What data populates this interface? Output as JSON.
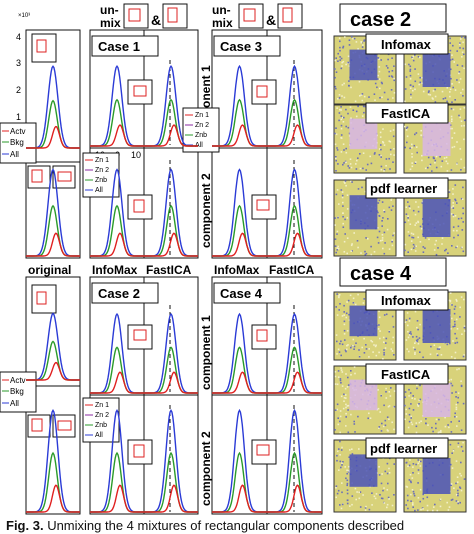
{
  "scale_note": "×10³",
  "tick_4": "4",
  "tick_3": "3",
  "tick_2": "2",
  "tick_1": "1",
  "xticks": [
    "-10",
    "0",
    "10"
  ],
  "unmix_left": "un-\nmix",
  "unmix_right": "un-\nmix",
  "amp": "&",
  "case1": "Case 1",
  "case2": "Case 2",
  "case3": "Case 3",
  "case4": "Case 4",
  "col_original": "original",
  "col_infomax": "InfoMax",
  "col_fastica": "FastICA",
  "component1": "component 1",
  "component2": "component 2",
  "legend_left": [
    "Actv",
    "Bkg",
    "All"
  ],
  "legend_zn": [
    "Zn 1",
    "Zn 2",
    "Znb",
    "All"
  ],
  "case2_title": "case 2",
  "case4_title": "case 4",
  "method_labels": [
    "Infomax",
    "FastICA",
    "pdf learner"
  ],
  "colors": {
    "actv": "#e02020",
    "bkg": "#2a9a2a",
    "all": "#2b3bd6",
    "zn2": "#8a2aa0",
    "noise_yellow": "#d8d27a",
    "blue_patch": "#4a52b8",
    "pink_patch": "#d8b6e6"
  },
  "caption_label": "Fig. 3.",
  "caption_text": "Unmixing the 4 mixtures of rectangular components described"
}
